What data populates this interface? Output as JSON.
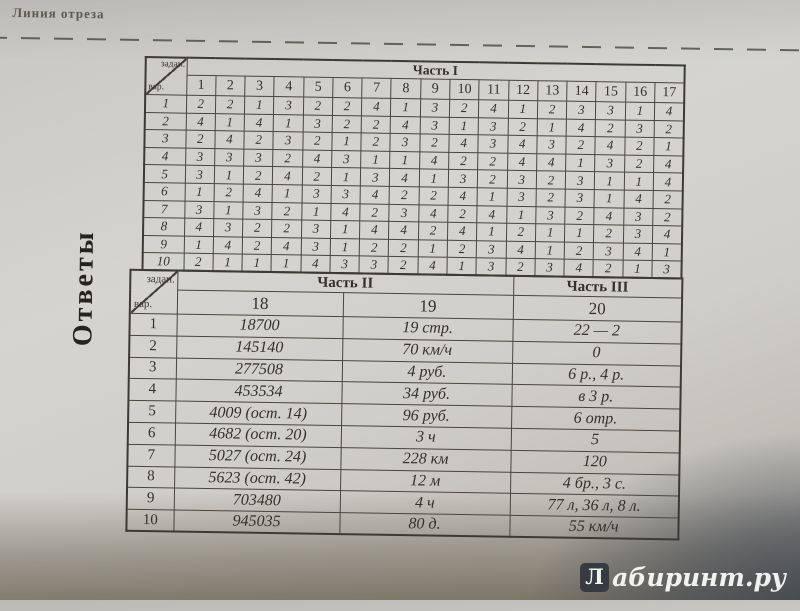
{
  "page": {
    "cut_line_label": "Линия отреза",
    "side_title": "Ответы"
  },
  "watermark": {
    "badge": "Л",
    "text": "абиринт.ру"
  },
  "table1": {
    "corner_top": "задан.",
    "corner_bottom": "вар.",
    "part_label": "Часть I",
    "columns": [
      "1",
      "2",
      "3",
      "4",
      "5",
      "6",
      "7",
      "8",
      "9",
      "10",
      "11",
      "12",
      "13",
      "14",
      "15",
      "16",
      "17"
    ],
    "rows": [
      {
        "var": "1",
        "values": [
          "2",
          "2",
          "1",
          "3",
          "2",
          "2",
          "4",
          "1",
          "3",
          "2",
          "4",
          "1",
          "2",
          "3",
          "3",
          "1",
          "4"
        ]
      },
      {
        "var": "2",
        "values": [
          "4",
          "1",
          "4",
          "1",
          "3",
          "2",
          "2",
          "4",
          "3",
          "1",
          "3",
          "2",
          "1",
          "4",
          "2",
          "3",
          "2"
        ]
      },
      {
        "var": "3",
        "values": [
          "2",
          "4",
          "2",
          "3",
          "2",
          "1",
          "2",
          "3",
          "2",
          "4",
          "3",
          "4",
          "3",
          "2",
          "4",
          "2",
          "1"
        ]
      },
      {
        "var": "4",
        "values": [
          "3",
          "3",
          "3",
          "2",
          "4",
          "3",
          "1",
          "1",
          "4",
          "2",
          "2",
          "4",
          "4",
          "1",
          "3",
          "2",
          "4"
        ]
      },
      {
        "var": "5",
        "values": [
          "3",
          "1",
          "2",
          "4",
          "2",
          "1",
          "3",
          "4",
          "1",
          "3",
          "2",
          "3",
          "2",
          "3",
          "1",
          "1",
          "4"
        ]
      },
      {
        "var": "6",
        "values": [
          "1",
          "2",
          "4",
          "1",
          "3",
          "3",
          "4",
          "2",
          "2",
          "4",
          "1",
          "3",
          "2",
          "3",
          "1",
          "4",
          "2"
        ]
      },
      {
        "var": "7",
        "values": [
          "3",
          "1",
          "3",
          "2",
          "1",
          "4",
          "2",
          "3",
          "4",
          "2",
          "4",
          "1",
          "3",
          "2",
          "4",
          "3",
          "2"
        ]
      },
      {
        "var": "8",
        "values": [
          "4",
          "3",
          "2",
          "2",
          "3",
          "1",
          "4",
          "4",
          "2",
          "4",
          "1",
          "2",
          "1",
          "1",
          "2",
          "3",
          "4"
        ]
      },
      {
        "var": "9",
        "values": [
          "1",
          "4",
          "2",
          "4",
          "3",
          "1",
          "2",
          "2",
          "1",
          "2",
          "3",
          "4",
          "1",
          "2",
          "3",
          "4",
          "1"
        ]
      },
      {
        "var": "10",
        "values": [
          "2",
          "1",
          "1",
          "1",
          "4",
          "3",
          "3",
          "2",
          "4",
          "1",
          "3",
          "2",
          "3",
          "4",
          "2",
          "1",
          "3"
        ]
      }
    ]
  },
  "table2": {
    "corner_top": "задан.",
    "corner_bottom": "вар.",
    "part2_label": "Часть II",
    "part3_label": "Часть III",
    "columns": [
      "18",
      "19",
      "20"
    ],
    "rows": [
      {
        "var": "1",
        "values": [
          "18700",
          "19 стр.",
          "22 — 2"
        ]
      },
      {
        "var": "2",
        "values": [
          "145140",
          "70 км/ч",
          "0"
        ]
      },
      {
        "var": "3",
        "values": [
          "277508",
          "4 руб.",
          "6 р., 4 р."
        ]
      },
      {
        "var": "4",
        "values": [
          "453534",
          "34 руб.",
          "в 3 р."
        ]
      },
      {
        "var": "5",
        "values": [
          "4009 (ост. 14)",
          "96 руб.",
          "6 отр."
        ]
      },
      {
        "var": "6",
        "values": [
          "4682 (ост. 20)",
          "3 ч",
          "5"
        ]
      },
      {
        "var": "7",
        "values": [
          "5027 (ост. 24)",
          "228 км",
          "120"
        ]
      },
      {
        "var": "8",
        "values": [
          "5623 (ост. 42)",
          "12 м",
          "4 бр., 3 с."
        ]
      },
      {
        "var": "9",
        "values": [
          "703480",
          "4 ч",
          "77 л, 36 л, 8 л."
        ]
      },
      {
        "var": "10",
        "values": [
          "945035",
          "80 д.",
          "55 км/ч"
        ]
      }
    ]
  }
}
